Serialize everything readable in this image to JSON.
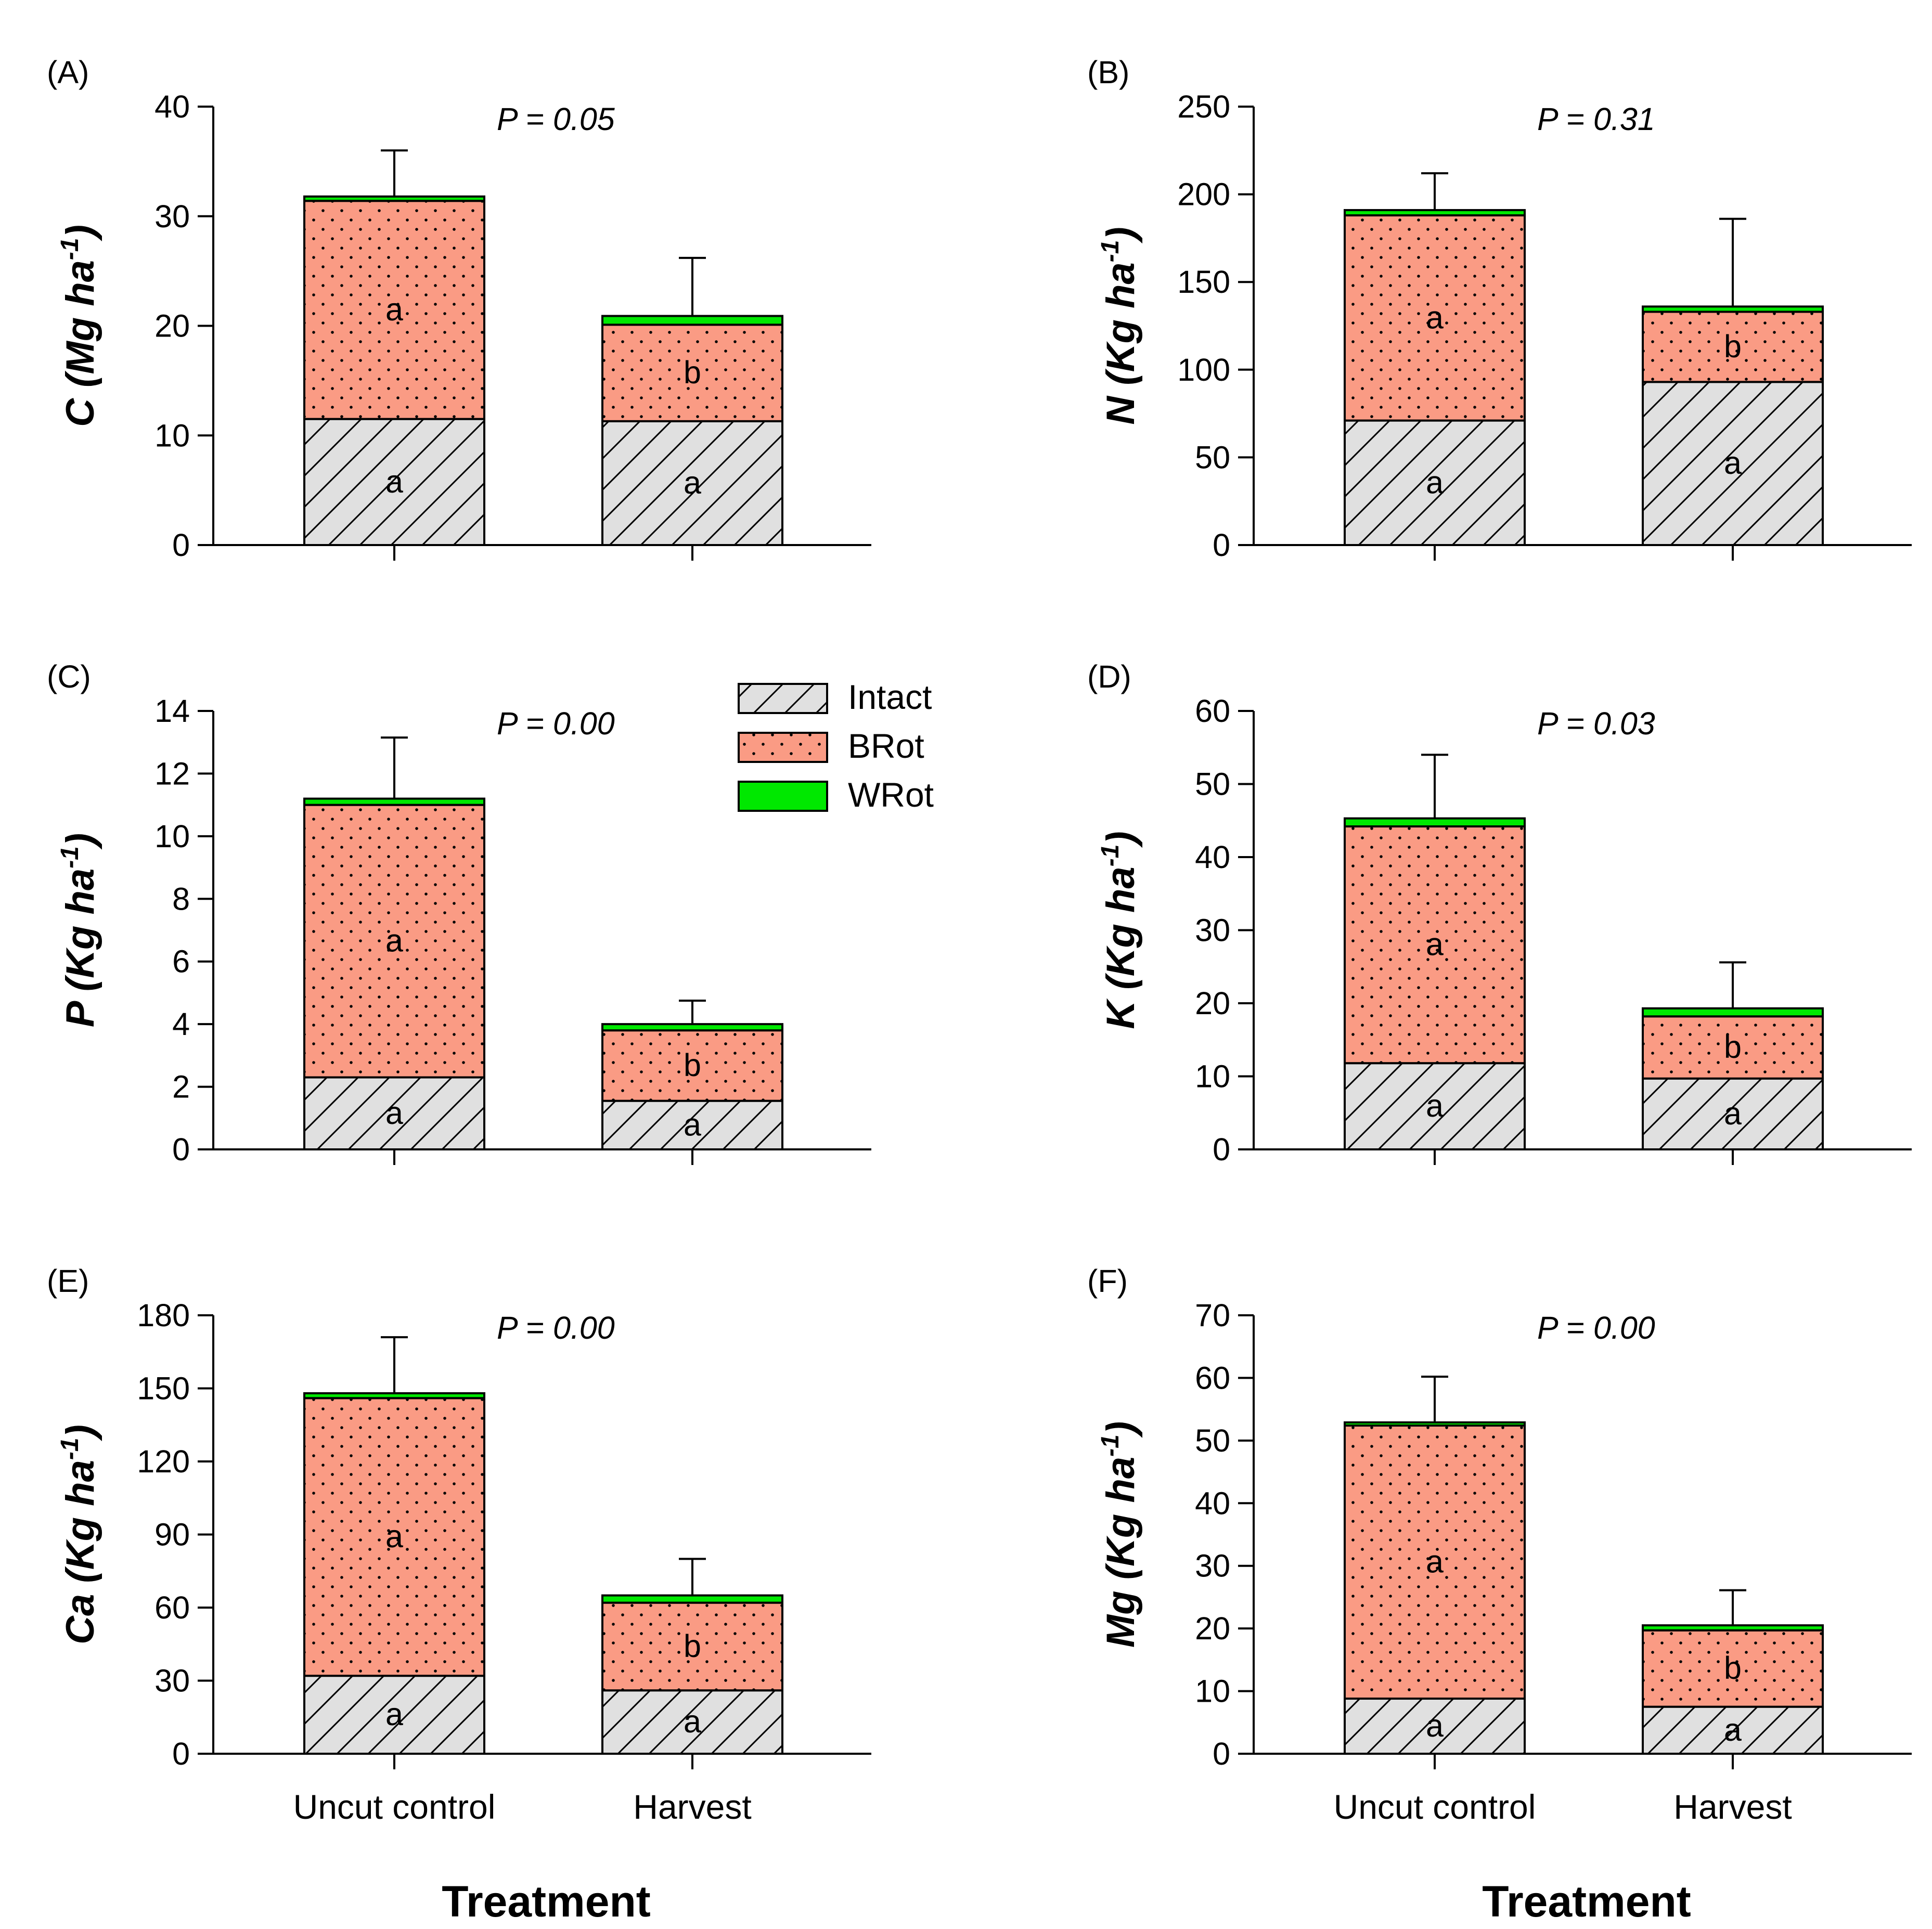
{
  "chart_data": [
    {
      "type": "bar",
      "stacked": true,
      "panel_label": "(A)",
      "ylabel_main": "C (Mg ha",
      "ylabel_sup": "-1",
      "ylabel_end": ")",
      "p_value": "P = 0.05",
      "ylim": [
        0,
        40
      ],
      "yticks": [
        0,
        10,
        20,
        30,
        40
      ],
      "categories": [
        "Uncut control",
        "Harvest"
      ],
      "series": [
        {
          "name": "Intact",
          "values": [
            11.5,
            11.3
          ],
          "letters": [
            "a",
            "a"
          ]
        },
        {
          "name": "BRot",
          "values": [
            19.9,
            8.8
          ],
          "letters": [
            "a",
            "b"
          ]
        },
        {
          "name": "WRot",
          "values": [
            0.4,
            0.8
          ]
        }
      ],
      "error_top": [
        36,
        26.2
      ]
    },
    {
      "type": "bar",
      "stacked": true,
      "panel_label": "(B)",
      "ylabel_main": "N (Kg ha",
      "ylabel_sup": "-1",
      "ylabel_end": ")",
      "p_value": "P = 0.31",
      "ylim": [
        0,
        250
      ],
      "yticks": [
        0,
        50,
        100,
        150,
        200,
        250
      ],
      "categories": [
        "Uncut control",
        "Harvest"
      ],
      "series": [
        {
          "name": "Intact",
          "values": [
            71,
            93
          ],
          "letters": [
            "a",
            "a"
          ]
        },
        {
          "name": "BRot",
          "values": [
            117,
            40
          ],
          "letters": [
            "a",
            "b"
          ]
        },
        {
          "name": "WRot",
          "values": [
            3,
            3
          ]
        }
      ],
      "error_top": [
        212,
        186
      ]
    },
    {
      "type": "bar",
      "stacked": true,
      "panel_label": "(C)",
      "ylabel_main": "P (Kg ha",
      "ylabel_sup": "-1",
      "ylabel_end": ")",
      "p_value": "P = 0.00",
      "ylim": [
        0,
        14
      ],
      "yticks": [
        0,
        2,
        4,
        6,
        8,
        10,
        12,
        14
      ],
      "categories": [
        "Uncut control",
        "Harvest"
      ],
      "series": [
        {
          "name": "Intact",
          "values": [
            2.3,
            1.55
          ],
          "letters": [
            "a",
            "a"
          ]
        },
        {
          "name": "BRot",
          "values": [
            8.7,
            2.25
          ],
          "letters": [
            "a",
            "b"
          ]
        },
        {
          "name": "WRot",
          "values": [
            0.2,
            0.2
          ]
        }
      ],
      "error_top": [
        13.15,
        4.75
      ]
    },
    {
      "type": "bar",
      "stacked": true,
      "panel_label": "(D)",
      "ylabel_main": "K (Kg ha",
      "ylabel_sup": "-1",
      "ylabel_end": ")",
      "p_value": "P = 0.03",
      "ylim": [
        0,
        60
      ],
      "yticks": [
        0,
        10,
        20,
        30,
        40,
        50,
        60
      ],
      "categories": [
        "Uncut control",
        "Harvest"
      ],
      "series": [
        {
          "name": "Intact",
          "values": [
            11.8,
            9.7
          ],
          "letters": [
            "a",
            "a"
          ]
        },
        {
          "name": "BRot",
          "values": [
            32.4,
            8.5
          ],
          "letters": [
            "a",
            "b"
          ]
        },
        {
          "name": "WRot",
          "values": [
            1.1,
            1.1
          ]
        }
      ],
      "error_top": [
        54,
        25.6
      ]
    },
    {
      "type": "bar",
      "stacked": true,
      "panel_label": "(E)",
      "ylabel_main": "Ca (Kg ha",
      "ylabel_sup": "-1",
      "ylabel_end": ")",
      "p_value": "P = 0.00",
      "ylim": [
        0,
        180
      ],
      "yticks": [
        0,
        30,
        60,
        90,
        120,
        150,
        180
      ],
      "categories": [
        "Uncut control",
        "Harvest"
      ],
      "series": [
        {
          "name": "Intact",
          "values": [
            32,
            26
          ],
          "letters": [
            "a",
            "a"
          ]
        },
        {
          "name": "BRot",
          "values": [
            114,
            36
          ],
          "letters": [
            "a",
            "b"
          ]
        },
        {
          "name": "WRot",
          "values": [
            2,
            3
          ]
        }
      ],
      "error_top": [
        171,
        80
      ]
    },
    {
      "type": "bar",
      "stacked": true,
      "panel_label": "(F)",
      "ylabel_main": "Mg (Kg ha",
      "ylabel_sup": "-1",
      "ylabel_end": ")",
      "p_value": "P = 0.00",
      "ylim": [
        0,
        70
      ],
      "yticks": [
        0,
        10,
        20,
        30,
        40,
        50,
        60,
        70
      ],
      "categories": [
        "Uncut control",
        "Harvest"
      ],
      "series": [
        {
          "name": "Intact",
          "values": [
            8.8,
            7.5
          ],
          "letters": [
            "a",
            "a"
          ]
        },
        {
          "name": "BRot",
          "values": [
            43.6,
            12.2
          ],
          "letters": [
            "a",
            "b"
          ]
        },
        {
          "name": "WRot",
          "values": [
            0.5,
            0.8
          ]
        }
      ],
      "error_top": [
        60.2,
        26.1
      ]
    }
  ],
  "x_title": "Treatment",
  "legend": {
    "placement": "right of panel C, top",
    "entries": [
      {
        "name": "Intact",
        "pattern": "diagonal-hatch",
        "color": "#e0e0e0"
      },
      {
        "name": "BRot",
        "pattern": "dotted",
        "color": "#fa9b84"
      },
      {
        "name": "WRot",
        "pattern": "solid",
        "color": "#00e800"
      }
    ]
  },
  "colors": {
    "intact": "#e0e0e0",
    "brot": "#fa9b84",
    "wrot": "#00e800",
    "axis": "#000000"
  }
}
